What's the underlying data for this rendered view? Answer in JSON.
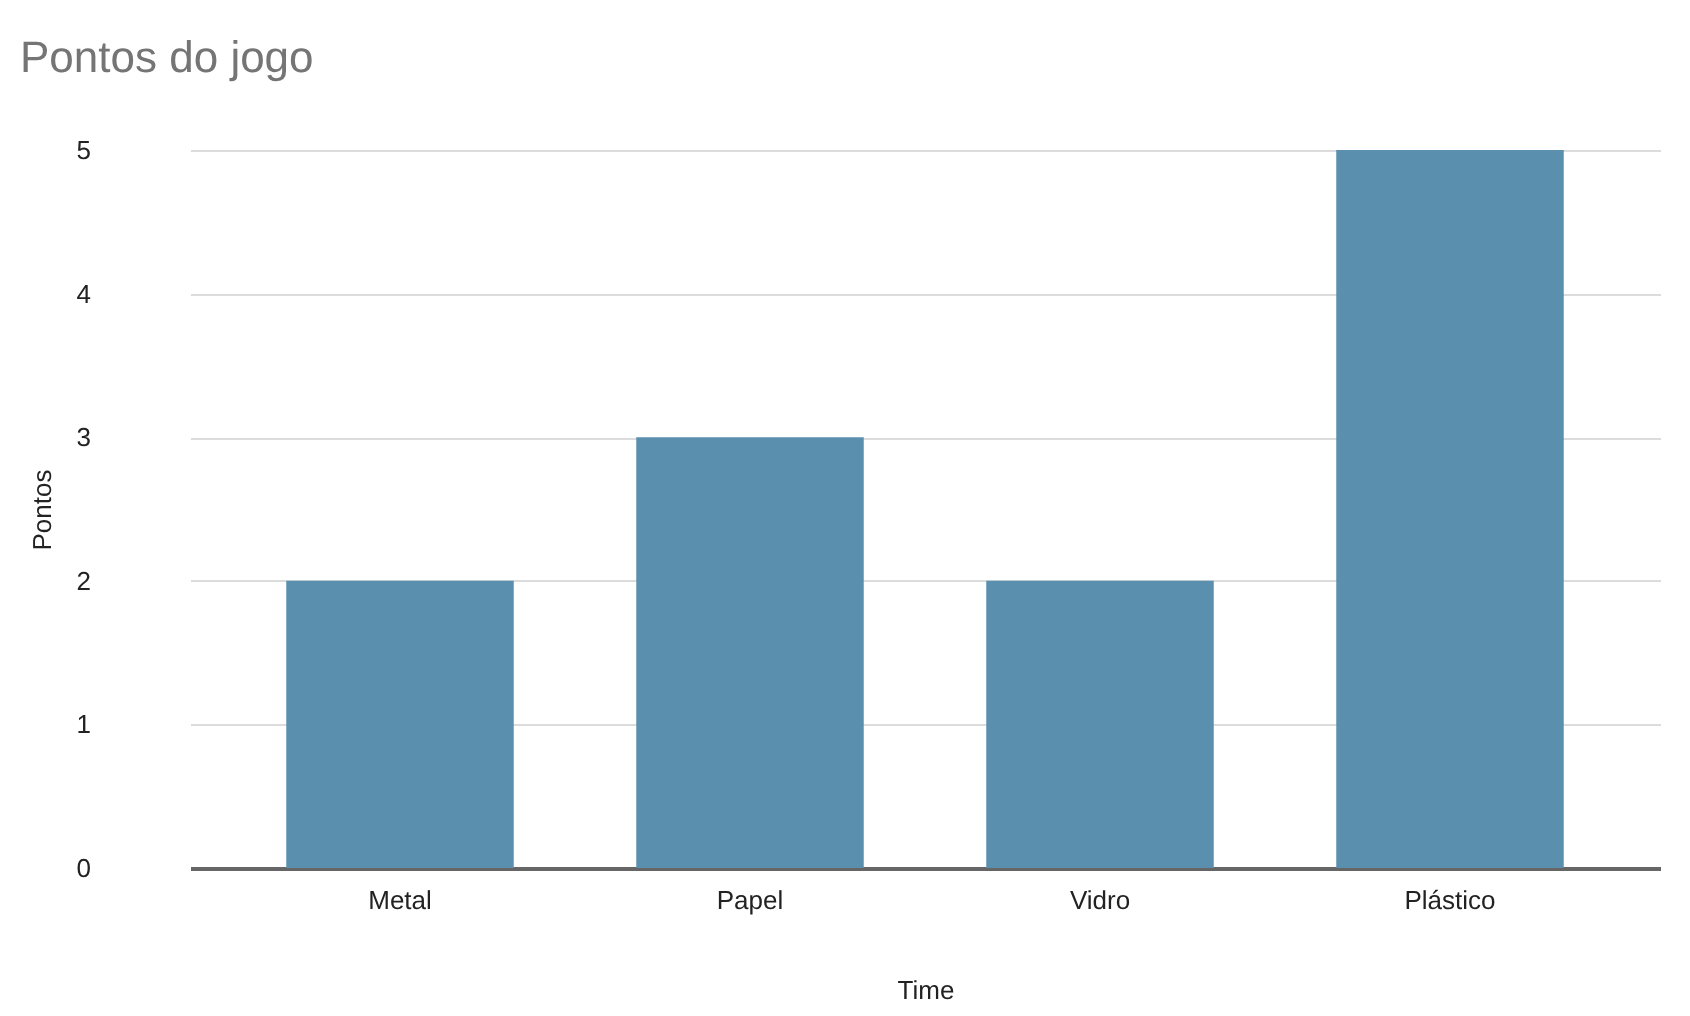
{
  "chart_data": {
    "type": "bar",
    "title": "Pontos do jogo",
    "xlabel": "Time",
    "ylabel": "Pontos",
    "categories": [
      "Metal",
      "Papel",
      "Vidro",
      "Plástico"
    ],
    "values": [
      2,
      3,
      2,
      5
    ],
    "color": "#5a8fae",
    "ylim": [
      0,
      5
    ],
    "yticks": [
      0,
      1,
      2,
      3,
      4,
      5
    ],
    "grid": "y"
  }
}
